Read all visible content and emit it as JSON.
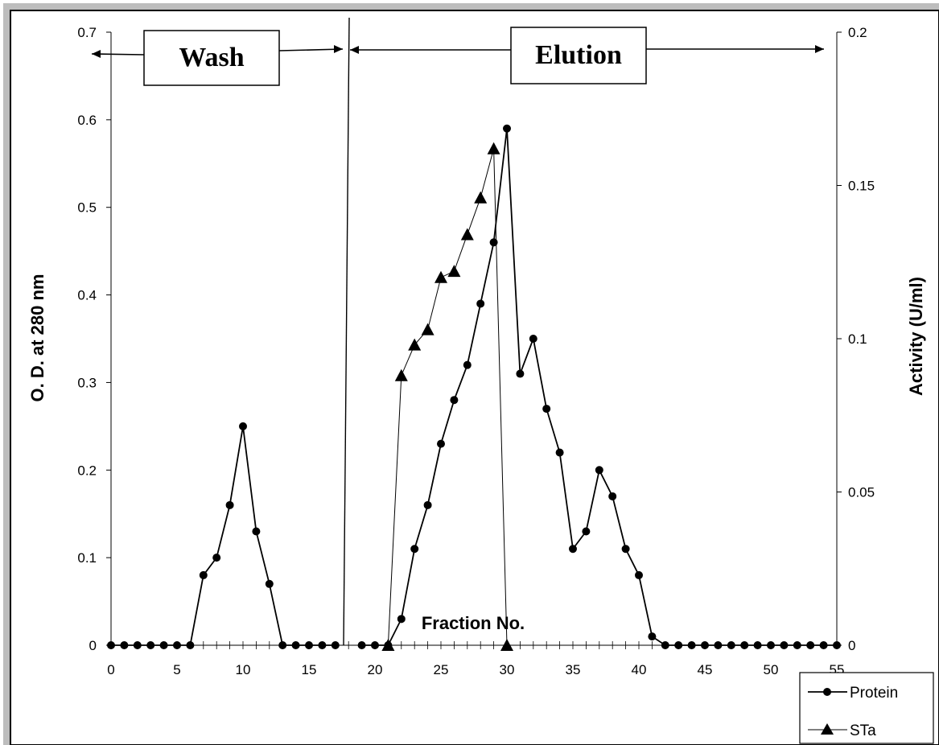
{
  "chart_data": {
    "type": "line",
    "xlabel": "Fraction No.",
    "ylabel": "O. D. at 280 nm",
    "y2label": "Activity (U/ml)",
    "xlim": [
      0,
      55
    ],
    "ylim": [
      0,
      0.7
    ],
    "y2lim": [
      0,
      0.2
    ],
    "x_ticks": [
      "0",
      "5",
      "10",
      "15",
      "20",
      "25",
      "30",
      "35",
      "40",
      "45",
      "50",
      "55"
    ],
    "y_ticks": [
      "0",
      "0.1",
      "0.2",
      "0.3",
      "0.4",
      "0.5",
      "0.6",
      "0.7"
    ],
    "y2_ticks": [
      "0",
      "0.05",
      "0.1",
      "0.15",
      "0.2"
    ],
    "regions": [
      {
        "label": "Wash",
        "x_from": 0,
        "x_to": 18
      },
      {
        "label": "Elution",
        "x_from": 18,
        "x_to": 55
      }
    ],
    "legend_position": "bottom-right",
    "grid": false,
    "series": [
      {
        "name": "Protein",
        "axis": "left",
        "marker": "circle",
        "x": [
          0,
          1,
          2,
          3,
          4,
          5,
          6,
          7,
          8,
          9,
          10,
          11,
          12,
          13,
          14,
          15,
          16,
          17,
          19,
          20,
          21,
          22,
          23,
          24,
          25,
          26,
          27,
          28,
          29,
          30,
          31,
          32,
          33,
          34,
          35,
          36,
          37,
          38,
          39,
          40,
          41,
          42,
          43,
          44,
          45,
          46,
          47,
          48,
          49,
          50,
          51,
          52,
          53,
          54,
          55
        ],
        "values": [
          0,
          0,
          0,
          0,
          0,
          0,
          0,
          0.08,
          0.1,
          0.16,
          0.25,
          0.13,
          0.07,
          0,
          0,
          0,
          0,
          0,
          0,
          0,
          0,
          0.03,
          0.11,
          0.16,
          0.23,
          0.28,
          0.32,
          0.39,
          0.46,
          0.59,
          0.31,
          0.35,
          0.27,
          0.22,
          0.11,
          0.13,
          0.2,
          0.17,
          0.11,
          0.08,
          0.01,
          0,
          0,
          0,
          0,
          0,
          0,
          0,
          0,
          0,
          0,
          0,
          0,
          0,
          0
        ]
      },
      {
        "name": "STa",
        "axis": "right",
        "marker": "triangle",
        "x": [
          21,
          22,
          23,
          24,
          25,
          26,
          27,
          28,
          29,
          30
        ],
        "values": [
          0,
          0.088,
          0.098,
          0.103,
          0.12,
          0.122,
          0.134,
          0.146,
          0.162,
          0
        ]
      }
    ]
  }
}
